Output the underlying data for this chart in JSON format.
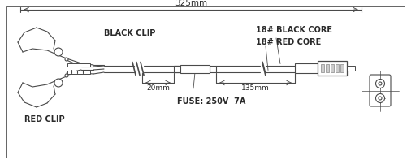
{
  "bg_color": "#ffffff",
  "line_color": "#4a4a4a",
  "text_color": "#2a2a2a",
  "title_325": "325mm",
  "label_20": "20mm",
  "label_135": "135mm",
  "label_black_clip": "BLACK CLIP",
  "label_red_clip": "RED CLIP",
  "label_18_black": "18# BLACK CORE",
  "label_18_red": "18# RED CORE",
  "label_fuse": "FUSE: 250V  7A",
  "figsize": [
    5.12,
    2.02
  ],
  "dpi": 100
}
